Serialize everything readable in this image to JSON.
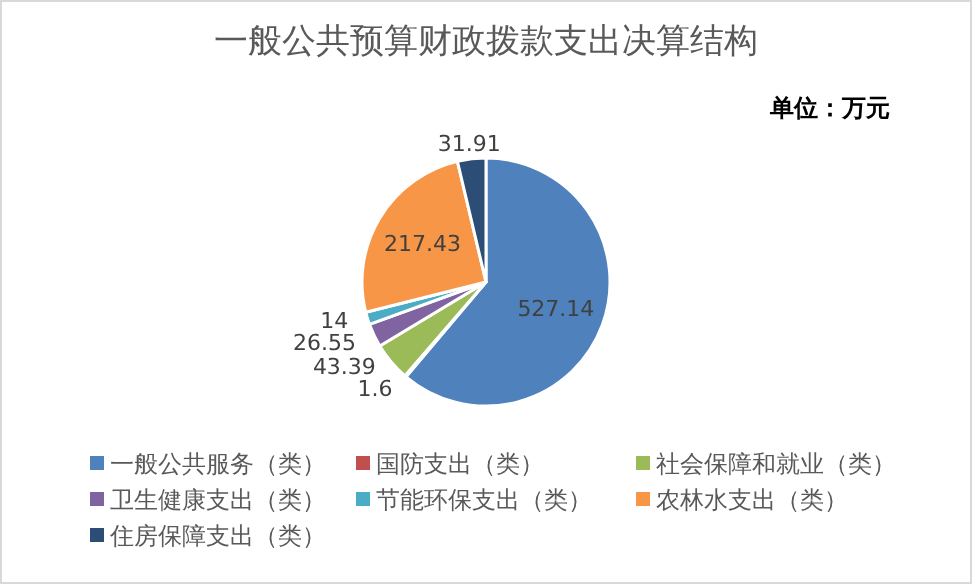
{
  "chart_data": {
    "type": "pie",
    "title": "一般公共预算财政拨款支出决算结构",
    "annotations": [
      "单位：万元"
    ],
    "categories": [
      "一般公共服务（类）",
      "国防支出（类）",
      "社会保障和就业（类）",
      "卫生健康支出（类）",
      "节能环保支出（类）",
      "农林水支出（类）",
      "住房保障支出（类）"
    ],
    "values": [
      527.14,
      1.6,
      43.39,
      26.55,
      14,
      217.43,
      31.91
    ],
    "colors": [
      "#4f81bd",
      "#c0504d",
      "#9bbb59",
      "#8064a2",
      "#4bacc6",
      "#f79646",
      "#2c4d75"
    ],
    "data_labels": true,
    "legend": "bottom"
  }
}
